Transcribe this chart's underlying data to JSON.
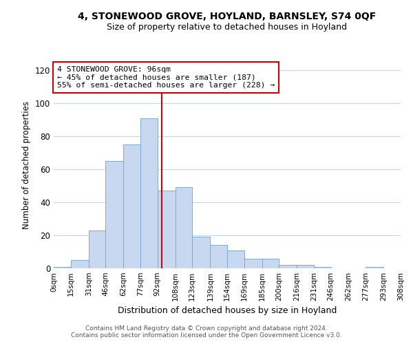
{
  "title": "4, STONEWOOD GROVE, HOYLAND, BARNSLEY, S74 0QF",
  "subtitle": "Size of property relative to detached houses in Hoyland",
  "xlabel": "Distribution of detached houses by size in Hoyland",
  "ylabel": "Number of detached properties",
  "bar_color": "#c8d8f0",
  "bar_edge_color": "#7aaad0",
  "vline_color": "#cc0000",
  "vline_x": 96,
  "bin_edges": [
    0,
    15,
    31,
    46,
    62,
    77,
    92,
    108,
    123,
    139,
    154,
    169,
    185,
    200,
    216,
    231,
    246,
    262,
    277,
    293,
    308
  ],
  "bin_labels": [
    "0sqm",
    "15sqm",
    "31sqm",
    "46sqm",
    "62sqm",
    "77sqm",
    "92sqm",
    "108sqm",
    "123sqm",
    "139sqm",
    "154sqm",
    "169sqm",
    "185sqm",
    "200sqm",
    "216sqm",
    "231sqm",
    "246sqm",
    "262sqm",
    "277sqm",
    "293sqm",
    "308sqm"
  ],
  "bar_heights": [
    1,
    5,
    23,
    65,
    75,
    91,
    47,
    49,
    19,
    14,
    11,
    6,
    6,
    2,
    2,
    1,
    0,
    0,
    1,
    0
  ],
  "ylim": [
    0,
    125
  ],
  "yticks": [
    0,
    20,
    40,
    60,
    80,
    100,
    120
  ],
  "annotation_title": "4 STONEWOOD GROVE: 96sqm",
  "annotation_line1": "← 45% of detached houses are smaller (187)",
  "annotation_line2": "55% of semi-detached houses are larger (228) →",
  "footer_line1": "Contains HM Land Registry data © Crown copyright and database right 2024.",
  "footer_line2": "Contains public sector information licensed under the Open Government Licence v3.0.",
  "background_color": "#ffffff",
  "grid_color": "#c8d4e8"
}
